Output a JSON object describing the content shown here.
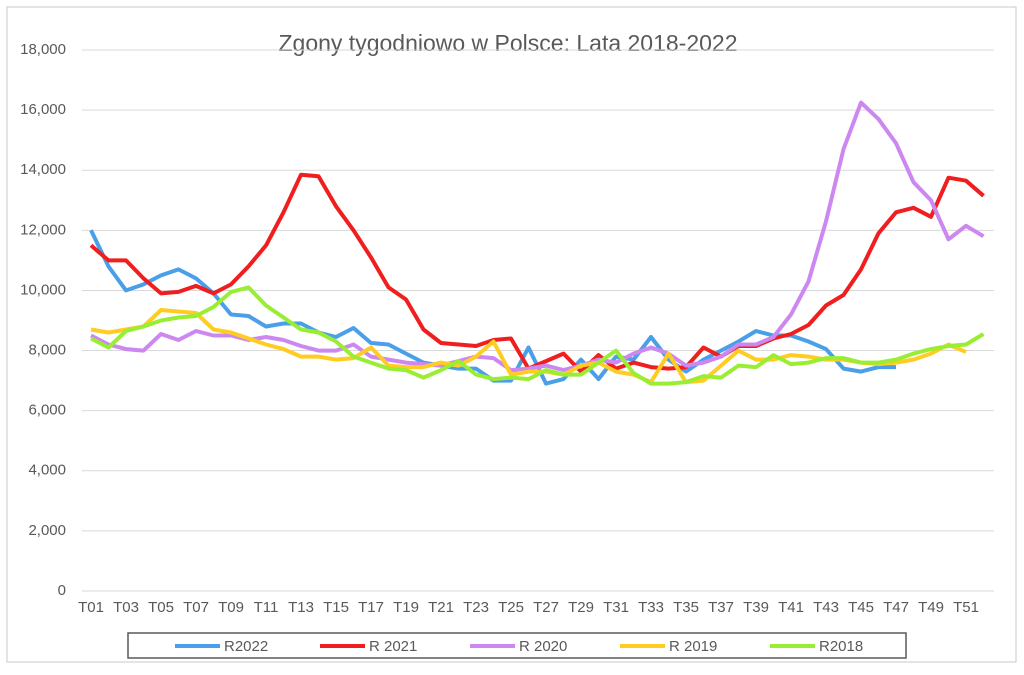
{
  "chart_data": {
    "type": "line",
    "title": "Zgony tygodniowo w Polsce: Lata 2018-2022",
    "categories": [
      "T01",
      null,
      "T03",
      null,
      "T05",
      null,
      "T07",
      null,
      "T09",
      null,
      "T11",
      null,
      "T13",
      null,
      "T15",
      null,
      "T17",
      null,
      "T19",
      null,
      "T21",
      null,
      "T23",
      null,
      "T25",
      null,
      "T27",
      null,
      "T29",
      null,
      "T31",
      null,
      "T33",
      null,
      "T35",
      null,
      "T37",
      null,
      "T39",
      null,
      "T41",
      null,
      "T43",
      null,
      "T45",
      null,
      "T47",
      null,
      "T49",
      null,
      "T51",
      null
    ],
    "ylim": [
      0,
      18000
    ],
    "yticks": [
      0,
      {
        "value": 2000,
        "label": "2,000"
      },
      {
        "value": 4000,
        "label": "4,000"
      },
      {
        "value": 6000,
        "label": "6,000"
      },
      {
        "value": 8000,
        "label": "8,000"
      },
      {
        "value": 10000,
        "label": "10,000"
      },
      {
        "value": 12000,
        "label": "12,000"
      },
      {
        "value": 14000,
        "label": "14,000"
      },
      {
        "value": 16000,
        "label": "16,000"
      },
      {
        "value": 18000,
        "label": "18,000"
      }
    ],
    "grid": true,
    "legend": "bottom",
    "series": [
      {
        "name": "R2022",
        "color": "#4a9fe8",
        "values": [
          12000,
          10800,
          10000,
          10200,
          10500,
          10700,
          10400,
          9900,
          9200,
          9150,
          8800,
          8900,
          8900,
          8600,
          8450,
          8750,
          8250,
          8200,
          7900,
          7600,
          7500,
          7400,
          7400,
          7000,
          7000,
          8100,
          6900,
          7050,
          7700,
          7050,
          7800,
          7700,
          8450,
          7700,
          7300,
          7700,
          8000,
          8300,
          8650,
          8500,
          8500,
          8300,
          8050,
          7400,
          7300,
          7450,
          7450,
          null,
          null,
          null,
          null,
          null
        ]
      },
      {
        "name": "R 2021",
        "color": "#f01e1e",
        "values": [
          11500,
          11000,
          11000,
          10400,
          9900,
          9950,
          10150,
          9900,
          10200,
          10800,
          11500,
          12600,
          13850,
          13800,
          12800,
          12000,
          11100,
          10100,
          9700,
          8700,
          8250,
          8200,
          8150,
          8350,
          8400,
          7400,
          7650,
          7900,
          7300,
          7850,
          7400,
          7600,
          7450,
          7400,
          7450,
          8100,
          7800,
          8150,
          8150,
          8400,
          8550,
          8850,
          9500,
          9850,
          10700,
          11900,
          12600,
          12750,
          12450,
          13750,
          13650,
          13150
        ]
      },
      {
        "name": "R 2020",
        "color": "#cc88f0",
        "values": [
          8500,
          8200,
          8050,
          8000,
          8550,
          8350,
          8650,
          8500,
          8500,
          8350,
          8450,
          8350,
          8150,
          8000,
          8000,
          8200,
          7800,
          7700,
          7600,
          7550,
          7500,
          7650,
          7800,
          7750,
          7350,
          7400,
          7500,
          7350,
          7500,
          7700,
          7600,
          7900,
          8100,
          7900,
          7500,
          7600,
          7800,
          8200,
          8200,
          8450,
          9200,
          10300,
          12300,
          14700,
          16250,
          15700,
          14900,
          13600,
          13000,
          11700,
          12150,
          11800
        ]
      },
      {
        "name": "R 2019",
        "color": "#ffcc22",
        "values": [
          8700,
          8600,
          8700,
          8800,
          9350,
          9300,
          9250,
          8700,
          8600,
          8400,
          8200,
          8050,
          7800,
          7800,
          7700,
          7750,
          8100,
          7500,
          7450,
          7450,
          7600,
          7500,
          7800,
          8300,
          7200,
          7300,
          7300,
          7200,
          7500,
          7600,
          7300,
          7200,
          6950,
          7900,
          6950,
          7000,
          7500,
          8000,
          7700,
          7700,
          7850,
          7800,
          7700,
          7700,
          7600,
          7550,
          7600,
          7700,
          7900,
          8200,
          7950,
          null
        ]
      },
      {
        "name": "R2018",
        "color": "#99ee33",
        "values": [
          8400,
          8100,
          8650,
          8800,
          9000,
          9100,
          9150,
          9450,
          9950,
          10100,
          9500,
          9100,
          8700,
          8600,
          8300,
          7800,
          7600,
          7400,
          7350,
          7100,
          7350,
          7650,
          7200,
          7050,
          7100,
          7050,
          7350,
          7200,
          7200,
          7600,
          8000,
          7250,
          6900,
          6900,
          6950,
          7150,
          7100,
          7500,
          7450,
          7850,
          7550,
          7600,
          7750,
          7750,
          7600,
          7600,
          7700,
          7900,
          8050,
          8150,
          8200,
          8550
        ]
      }
    ]
  }
}
